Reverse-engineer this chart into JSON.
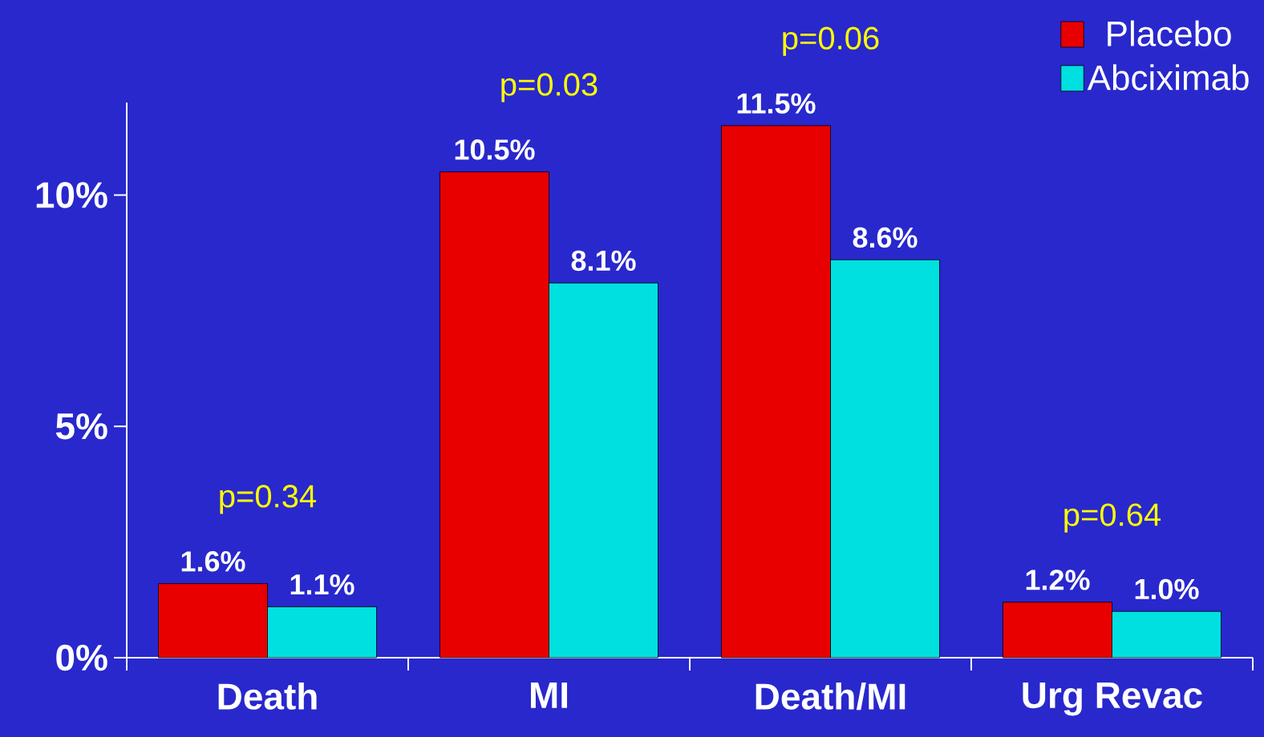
{
  "chart_data": {
    "type": "bar",
    "categories": [
      "Death",
      "MI",
      "Death/MI",
      "Urg Revac"
    ],
    "series": [
      {
        "name": "Placebo",
        "color": "#e80000",
        "values": [
          1.6,
          10.5,
          11.5,
          1.2
        ],
        "value_labels": [
          "1.6%",
          "10.5%",
          "11.5%",
          "1.2%"
        ]
      },
      {
        "name": "Abciximab",
        "color": "#00e0e0",
        "values": [
          1.1,
          8.1,
          8.6,
          1.0
        ],
        "value_labels": [
          "1.1%",
          "8.1%",
          "8.6%",
          "1.0%"
        ]
      }
    ],
    "ylim": [
      0,
      12
    ],
    "yticks": [
      {
        "value": 0,
        "label": "0%"
      },
      {
        "value": 5,
        "label": "5%"
      },
      {
        "value": 10,
        "label": "10%"
      }
    ],
    "annotations": [
      "p=0.34",
      "p=0.03",
      "p=0.06",
      "p=0.64"
    ],
    "legend": "top right",
    "grid": false
  }
}
